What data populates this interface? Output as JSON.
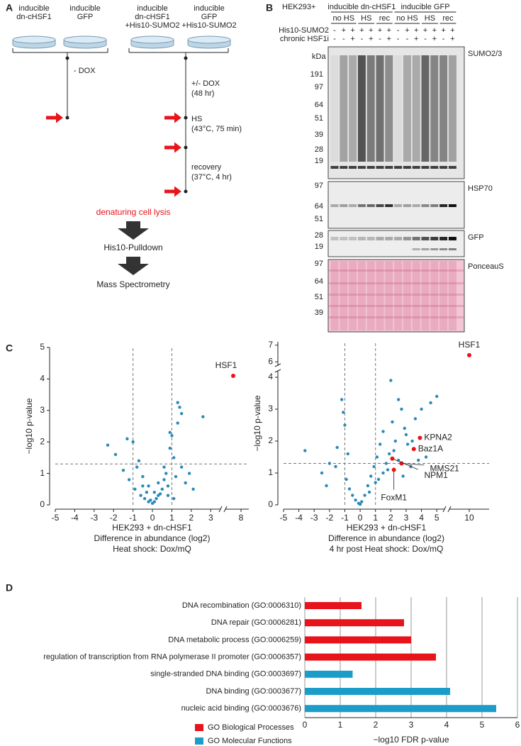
{
  "panel_labels": [
    "A",
    "B",
    "C",
    "D"
  ],
  "schematic": {
    "dishes": [
      [
        "inducible",
        "dn-cHSF1"
      ],
      [
        "inducible",
        "GFP"
      ],
      [
        "inducible",
        "dn-cHSF1",
        "+His10-SUMO2"
      ],
      [
        "inducible",
        "GFP",
        "+His10-SUMO2"
      ]
    ],
    "steps_left": [
      "- DOX"
    ],
    "steps_right": [
      [
        "+/- DOX",
        "(48 hr)"
      ],
      [
        "HS",
        "(43°C, 75 min)"
      ],
      [
        "recovery",
        "(37°C, 4 hr)"
      ]
    ],
    "workflow": [
      "denaturing cell lysis",
      "His10-Pulldown",
      "Mass Spectrometry"
    ]
  },
  "blot": {
    "cell_line": "HEK293+",
    "groups": [
      "inducible dn-cHSF1",
      "inducible GFP"
    ],
    "conditions": [
      "no HS",
      "HS",
      "rec",
      "no HS",
      "HS",
      "rec"
    ],
    "rows": [
      {
        "name": "His10-SUMO2",
        "signs": [
          "-",
          "+",
          "+",
          "+",
          "+",
          "+",
          "+",
          "-",
          "+",
          "+",
          "+",
          "+",
          "+",
          "+"
        ]
      },
      {
        "name": "chronic HSF1i",
        "signs": [
          "-",
          "-",
          "+",
          "-",
          "+",
          "-",
          "+",
          "-",
          "-",
          "+",
          "-",
          "+",
          "-",
          "+"
        ]
      }
    ],
    "kda": "kDa",
    "panels": [
      {
        "name": "SUMO2/3",
        "ladder": [
          191,
          97,
          64,
          51,
          39,
          28,
          19
        ]
      },
      {
        "name": "HSP70",
        "ladder": [
          97,
          64,
          51
        ]
      },
      {
        "name": "GFP",
        "ladder": [
          28,
          19
        ]
      },
      {
        "name": "PonceauS",
        "ladder": [
          97,
          64,
          51,
          39
        ]
      }
    ]
  },
  "chart_data": [
    {
      "type": "scatter",
      "xlabel": [
        "HEK293 + dn-cHSF1",
        "Difference in abundance (log2)",
        "Heat shock: Dox/mQ"
      ],
      "ylabel": "−log10 p-value",
      "color": "#2a8ab8",
      "highlight_color": "#e8141b",
      "x": [
        -2.3,
        -1.9,
        -1.5,
        -1.2,
        -1.0,
        -0.9,
        -0.8,
        -0.6,
        -0.5,
        -0.4,
        -0.3,
        -0.2,
        -0.1,
        0,
        0.1,
        0.2,
        0.3,
        0.4,
        0.5,
        0.6,
        0.7,
        0.8,
        0.9,
        1.0,
        1.1,
        1.2,
        1.3,
        1.4,
        1.5,
        1.7,
        1.9,
        2.1,
        1.3,
        1.5,
        2.6,
        -1.3,
        -0.7,
        0.9,
        0.8,
        -0.2,
        0.3,
        0.6,
        -0.5,
        0.1,
        1.1
      ],
      "y": [
        1.9,
        1.6,
        1.1,
        0.8,
        2.0,
        0.5,
        1.2,
        0.3,
        0.6,
        0.2,
        0.4,
        0.1,
        0.15,
        0.05,
        0.1,
        0.2,
        0.3,
        0.35,
        0.5,
        0.8,
        1.0,
        0.6,
        2.3,
        2.2,
        1.5,
        0.9,
        3.25,
        3.1,
        1.2,
        0.7,
        1.0,
        0.5,
        2.6,
        2.9,
        2.8,
        2.1,
        1.4,
        1.8,
        0.3,
        0.6,
        0.7,
        1.2,
        0.9,
        0.4,
        0.2
      ],
      "highlights": [
        {
          "label": "HSF1",
          "x": 7.5,
          "y": 4.1
        }
      ],
      "xlim": [
        -5,
        8.5
      ],
      "xbreak": [
        3.5,
        7
      ],
      "ylim": [
        0,
        5
      ],
      "xticks": [
        -5,
        -4,
        -3,
        -2,
        -1,
        0,
        1,
        2,
        3,
        8
      ],
      "yticks": [
        0,
        1,
        2,
        3,
        4,
        5
      ],
      "thresholds": {
        "x": [
          -1,
          1
        ],
        "y": 1.3
      }
    },
    {
      "type": "scatter",
      "xlabel": [
        "HEK293 + dn-cHSF1",
        "Difference in abundance (log2)",
        "4 hr post Heat shock: Dox/mQ"
      ],
      "ylabel": "−log10 p-value",
      "color": "#2a8ab8",
      "highlight_color": "#e8141b",
      "x": [
        -3.6,
        -2.5,
        -2.0,
        -1.5,
        -1.2,
        -1.0,
        -0.9,
        -0.7,
        -0.5,
        -0.3,
        -0.1,
        0.1,
        0.3,
        0.5,
        0.7,
        0.9,
        1.1,
        1.3,
        1.5,
        1.7,
        1.9,
        2.1,
        2.3,
        2.5,
        2.7,
        2.9,
        3.1,
        3.3,
        3.6,
        4.0,
        4.3,
        4.6,
        5.0,
        2.0,
        2.5,
        3.0,
        1.5,
        -1.1,
        -0.8,
        0.6,
        1.0,
        1.8,
        2.8,
        3.4,
        -1.6,
        -2.2,
        0.0,
        1.2,
        2.2,
        3.8
      ],
      "y": [
        1.7,
        1.0,
        1.3,
        1.8,
        3.3,
        2.5,
        0.8,
        0.5,
        0.3,
        0.15,
        0.05,
        0.1,
        0.3,
        0.6,
        0.9,
        1.2,
        1.5,
        1.9,
        2.3,
        1.3,
        1.6,
        2.6,
        2.0,
        1.4,
        3.0,
        2.4,
        1.9,
        1.2,
        2.7,
        3.0,
        1.5,
        3.2,
        3.4,
        3.9,
        3.3,
        2.2,
        1.0,
        2.9,
        1.6,
        0.4,
        0.7,
        1.1,
        0.9,
        2.0,
        1.2,
        0.6,
        0.02,
        0.8,
        1.7,
        1.4
      ],
      "highlights": [
        {
          "label": "HSF1",
          "x": 10,
          "y": 6.4
        },
        {
          "label": "KPNA2",
          "x": 3.9,
          "y": 2.1
        },
        {
          "label": "Baz1A",
          "x": 3.5,
          "y": 1.75
        },
        {
          "label": "MMS21",
          "x": 2.7,
          "y": 1.3
        },
        {
          "label": "NPM1",
          "x": 2.1,
          "y": 1.45
        },
        {
          "label": "FoxM1",
          "x": 2.2,
          "y": 1.1
        }
      ],
      "xlim": [
        -5,
        10.5
      ],
      "xbreak": [
        5.5,
        9.5
      ],
      "ylim": [
        0,
        7.2
      ],
      "ybreak": [
        4.2,
        5.8
      ],
      "xticks": [
        -5,
        -4,
        -3,
        -2,
        -1,
        0,
        1,
        2,
        3,
        4,
        5,
        10
      ],
      "yticks": [
        0,
        1,
        2,
        3,
        4,
        6,
        7
      ],
      "thresholds": {
        "x": [
          -1,
          1
        ],
        "y": 1.3
      }
    },
    {
      "type": "bar",
      "orientation": "horizontal",
      "categories": [
        "DNA recombination (GO:0006310)",
        "DNA repair (GO:0006281)",
        "DNA metabolic process (GO:0006259)",
        "regulation of transcription from RNA polymerase II promoter (GO:0006357)",
        "single-stranded DNA binding (GO:0003697)",
        "DNA binding (GO:0003677)",
        "nucleic acid binding (GO:0003676)"
      ],
      "series": [
        {
          "name": "GO Biological Processes",
          "color": "#e8141b",
          "values": [
            1.6,
            2.8,
            3.0,
            3.7,
            null,
            null,
            null
          ]
        },
        {
          "name": "GO Molecular Functions",
          "color": "#1c9dc9",
          "values": [
            null,
            null,
            null,
            null,
            1.35,
            4.1,
            5.4
          ]
        }
      ],
      "xlabel": "−log10 FDR p-value",
      "xlim": [
        0,
        6
      ],
      "xticks": [
        0,
        1,
        2,
        3,
        4,
        5,
        6
      ],
      "grid": true
    }
  ]
}
